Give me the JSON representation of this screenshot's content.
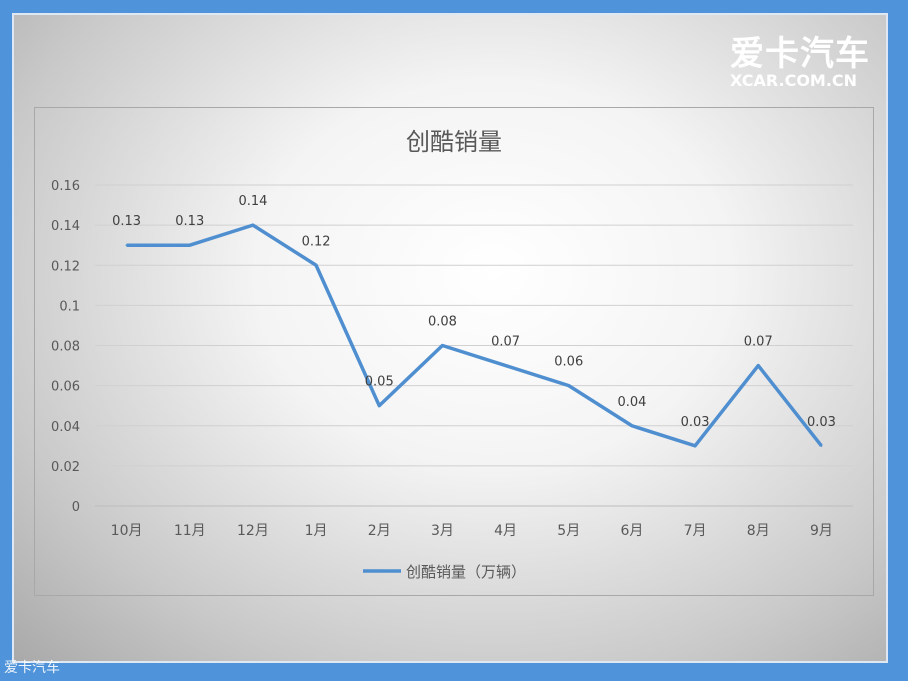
{
  "logo": {
    "cn": "爱卡汽车",
    "en": "XCAR.COM.CN"
  },
  "watermark": "爱卡汽车",
  "chart_data": {
    "type": "line",
    "title": "创酷销量",
    "categories": [
      "10月",
      "11月",
      "12月",
      "1月",
      "2月",
      "3月",
      "4月",
      "5月",
      "6月",
      "7月",
      "8月",
      "9月"
    ],
    "series": [
      {
        "name": "创酷销量（万辆）",
        "values": [
          0.13,
          0.13,
          0.14,
          0.12,
          0.05,
          0.08,
          0.07,
          0.06,
          0.04,
          0.03,
          0.07,
          0.03
        ],
        "color": "#4f8fd0"
      }
    ],
    "yticks": [
      "0",
      "0.02",
      "0.04",
      "0.06",
      "0.08",
      "0.1",
      "0.12",
      "0.14",
      "0.16"
    ],
    "ylim": [
      0,
      0.16
    ],
    "grid": true,
    "legend": "bottom",
    "data_labels": true
  }
}
